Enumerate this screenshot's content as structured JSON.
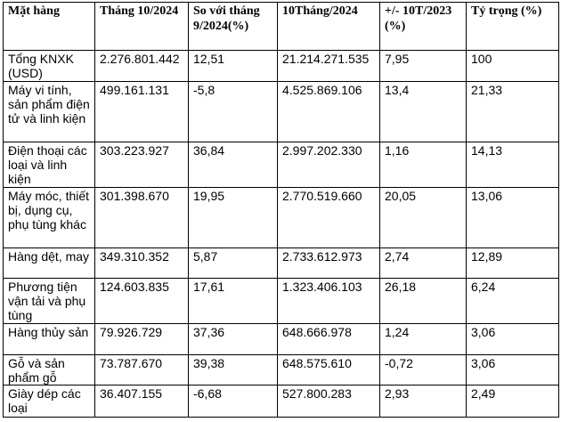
{
  "table": {
    "headers": [
      "Mặt hàng",
      "Tháng 10/2024",
      "So với tháng 9/2024(%)",
      "10Tháng/2024",
      "+/- 10T/2023 (%)",
      "Tỷ trọng (%)"
    ],
    "rows": [
      [
        "Tổng KNXK (USD)",
        "2.276.801.442",
        "12,51",
        "21.214.271.535",
        "7,95",
        "100"
      ],
      [
        "Máy vi tính, sản phẩm điện tử và linh kiện",
        "499.161.131",
        "-5,8",
        "4.525.869.106",
        "13,4",
        "21,33"
      ],
      [
        "Điện thoại các loại và linh kiện",
        "303.223.927",
        "36,84",
        "2.997.202.330",
        "1,16",
        "14,13"
      ],
      [
        "Máy móc, thiết bị, dụng cụ, phụ tùng khác",
        "301.398.670",
        "19,95",
        "2.770.519.660",
        "20,05",
        "13,06"
      ],
      [
        "Hàng dệt, may",
        "349.310.352",
        "5,87",
        "2.733.612.973",
        "2,74",
        "12,89"
      ],
      [
        "Phương tiện vận tải và phụ tùng",
        "124.603.835",
        "17,61",
        "1.323.406.103",
        "26,18",
        "6,24"
      ],
      [
        "Hàng thủy sản",
        "79.926.729",
        "37,36",
        "648.666.978",
        "1,24",
        "3,06"
      ],
      [
        "Gỗ và sản phẩm gỗ",
        "73.787.670",
        "39,38",
        "648.575.610",
        "-0,72",
        "3,06"
      ],
      [
        "Giày dép các loại",
        "36.407.155",
        "-6,68",
        "527.800.283",
        "2,93",
        "2,49"
      ]
    ]
  }
}
